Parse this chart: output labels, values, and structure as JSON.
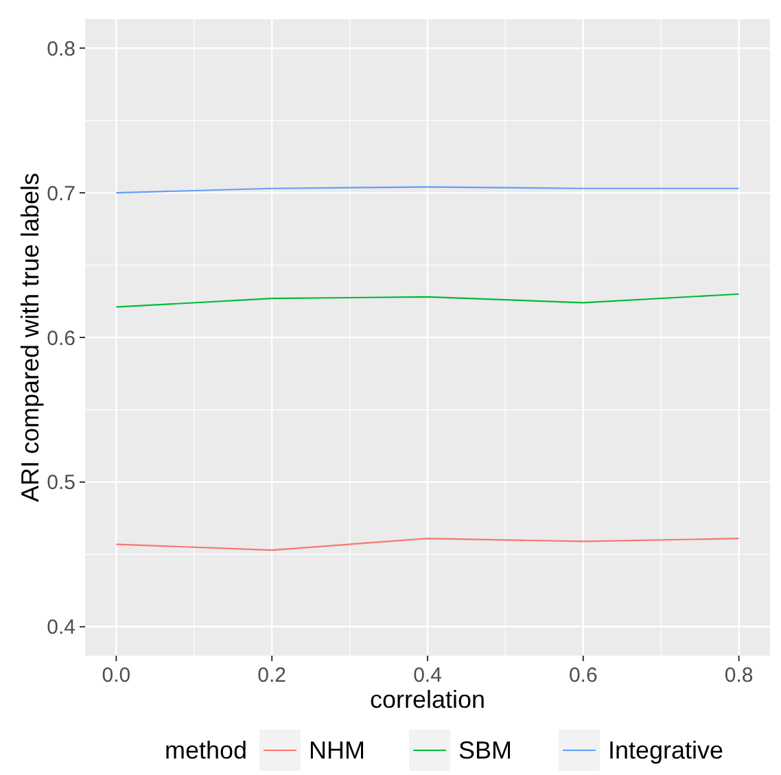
{
  "chart_data": {
    "type": "line",
    "xlabel": "correlation",
    "ylabel": "ARI compared with true labels",
    "legend_title": "method",
    "x": [
      0,
      0.2,
      0.4,
      0.6,
      0.8
    ],
    "series": [
      {
        "name": "NHM",
        "color": "#f8766d",
        "values": [
          0.457,
          0.453,
          0.461,
          0.459,
          0.461
        ]
      },
      {
        "name": "SBM",
        "color": "#00ba38",
        "values": [
          0.621,
          0.627,
          0.628,
          0.624,
          0.63
        ]
      },
      {
        "name": "Integrative",
        "color": "#619cff",
        "values": [
          0.7,
          0.703,
          0.704,
          0.703,
          0.703
        ]
      }
    ],
    "xlim": [
      -0.04,
      0.84
    ],
    "ylim": [
      0.38,
      0.82
    ],
    "xticks": [
      {
        "value": 0,
        "label": "0.0"
      },
      0.2,
      0.4,
      0.6,
      0.8
    ],
    "yticks": [
      0.4,
      0.5,
      0.6,
      0.7,
      0.8
    ],
    "grid": true,
    "legend": "bottom",
    "marker": "none",
    "line_style": "solid"
  }
}
